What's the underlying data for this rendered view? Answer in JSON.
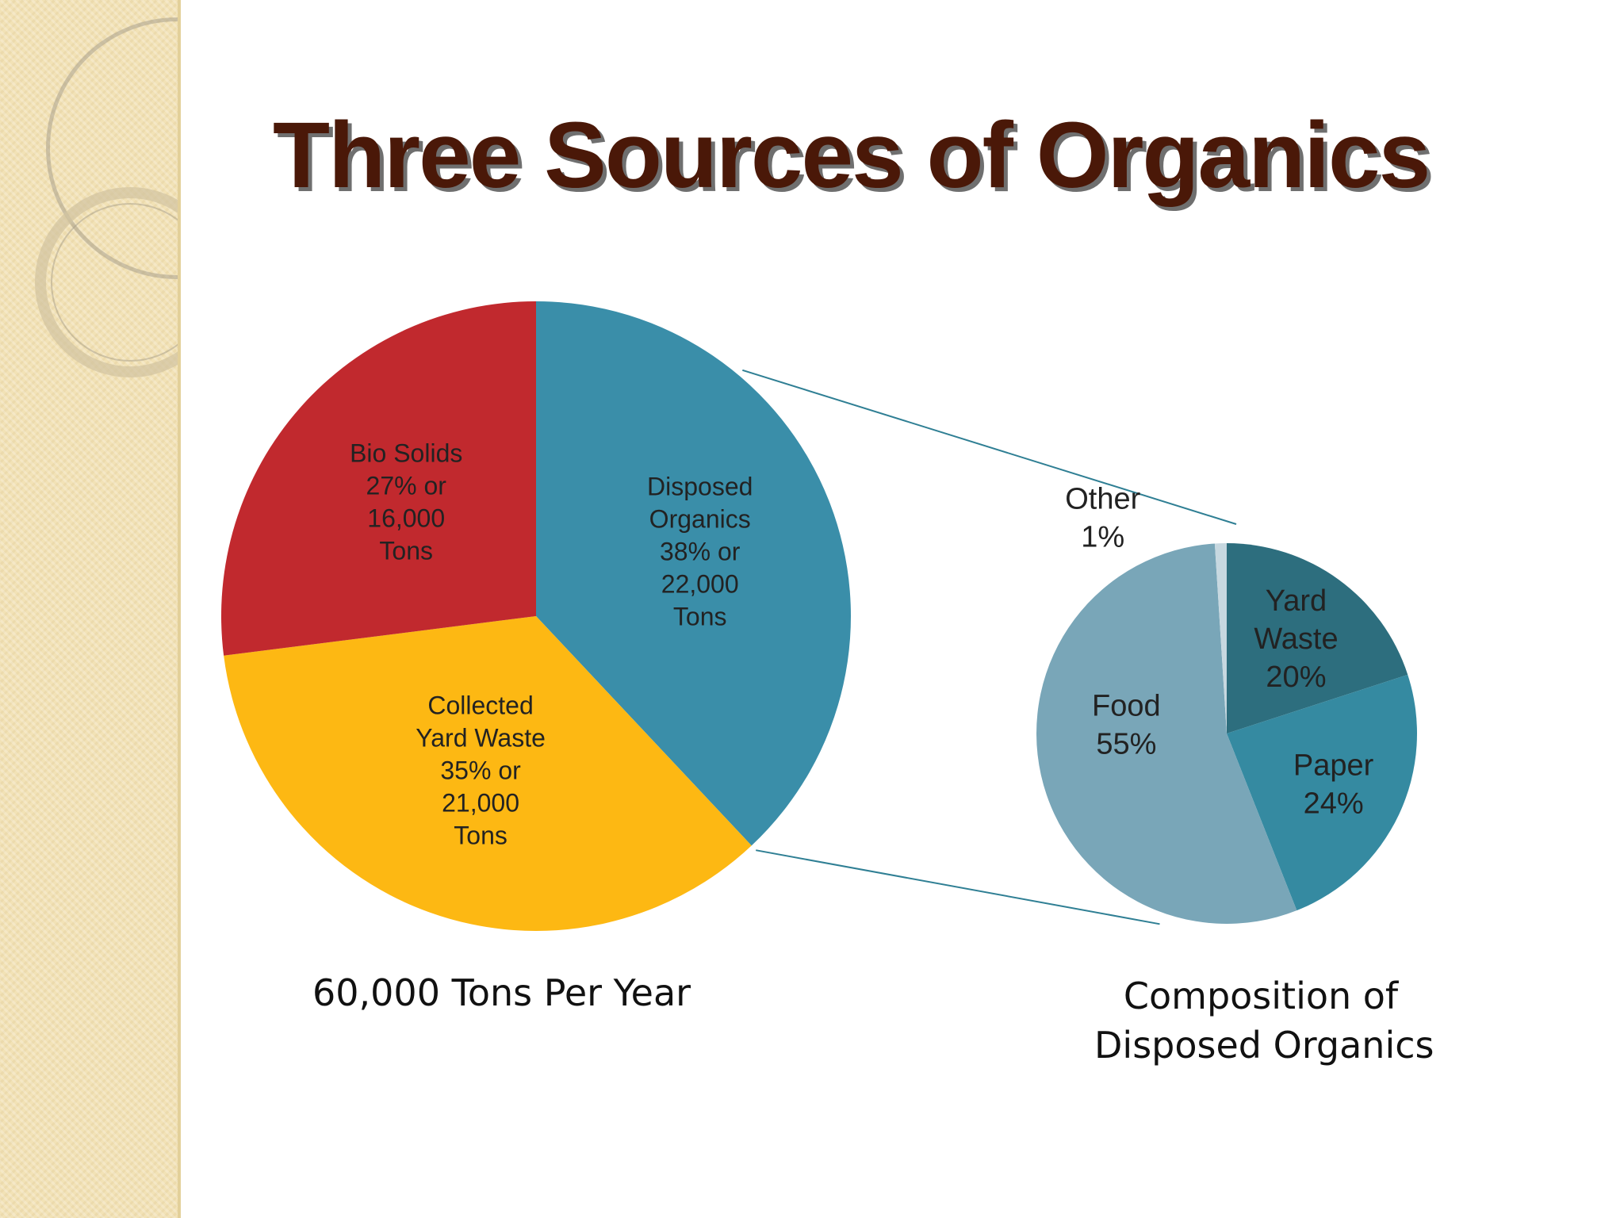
{
  "slide": {
    "title": "Three Sources of Organics"
  },
  "colors": {
    "bio_solids": "#c1292e",
    "collected_yard_waste": "#fdb813",
    "disposed_organics": "#3a8ea9",
    "yard_waste": "#2d6e7e",
    "paper": "#358aa1",
    "food": "#79a6b8",
    "other": "#c7d8e0",
    "title": "#4a1808",
    "connector": "#2f7f94"
  },
  "chart_data": [
    {
      "type": "pie",
      "title": "",
      "caption": "60,000 Tons Per Year",
      "slices": [
        {
          "name": "Disposed Organics",
          "percent": 38,
          "tons": 22000,
          "label_lines": [
            "Disposed",
            "Organics",
            "38% or",
            "22,000",
            "Tons"
          ],
          "color": "#3a8ea9"
        },
        {
          "name": "Collected Yard Waste",
          "percent": 35,
          "tons": 21000,
          "label_lines": [
            "Collected",
            "Yard Waste",
            "35% or",
            "21,000",
            "Tons"
          ],
          "color": "#fdb813"
        },
        {
          "name": "Bio Solids",
          "percent": 27,
          "tons": 16000,
          "label_lines": [
            "Bio Solids",
            "27% or",
            "16,000",
            "Tons"
          ],
          "color": "#c1292e"
        }
      ]
    },
    {
      "type": "pie",
      "title": "",
      "caption_lines": [
        "Composition of",
        "Disposed Organics"
      ],
      "slices": [
        {
          "name": "Yard Waste",
          "percent": 20,
          "label_lines": [
            "Yard",
            "Waste",
            "20%"
          ],
          "color": "#2d6e7e"
        },
        {
          "name": "Paper",
          "percent": 24,
          "label_lines": [
            "Paper",
            "24%"
          ],
          "color": "#358aa1"
        },
        {
          "name": "Food",
          "percent": 55,
          "label_lines": [
            "Food",
            "55%"
          ],
          "color": "#79a6b8"
        },
        {
          "name": "Other",
          "percent": 1,
          "label_lines": [
            "Other",
            "1%"
          ],
          "color": "#c7d8e0"
        }
      ]
    }
  ]
}
